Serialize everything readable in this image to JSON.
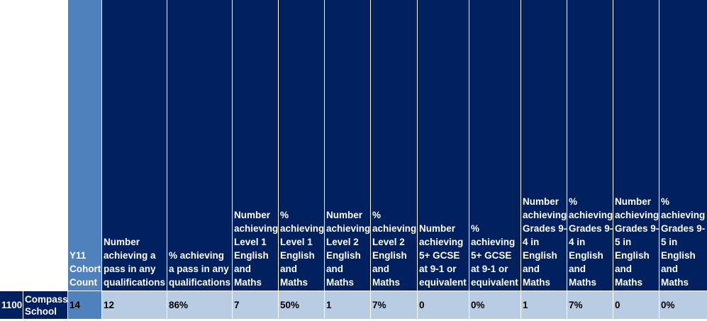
{
  "columns": [
    {
      "header": "Y11 Cohort Count",
      "value": "14"
    },
    {
      "header": "Number achieving a pass in any qualifications",
      "value": "12"
    },
    {
      "header": "% achieving a pass in any qualifications",
      "value": "86%"
    },
    {
      "header": "Number achieving Level 1 English and Maths",
      "value": "7"
    },
    {
      "header": "% achieving Level 1 English and Maths",
      "value": "50%"
    },
    {
      "header": "Number achieving Level 2 English and Maths",
      "value": "1"
    },
    {
      "header": "% achieving Level 2 English and Maths",
      "value": "7%"
    },
    {
      "header": "Number achieving 5+ GCSE at 9-1 or equivalent",
      "value": "0"
    },
    {
      "header": "% achieving 5+ GCSE at 9-1 or equivalent",
      "value": "0%"
    },
    {
      "header": "Number achieving Grades 9-4 in English and Maths",
      "value": "1"
    },
    {
      "header": "% achieving Grades 9-4 in English and Maths",
      "value": "7%"
    },
    {
      "header": "Number achieving Grades 9-5 in English and Maths",
      "value": "0"
    },
    {
      "header": "% achieving Grades 9-5 in English and Maths",
      "value": "0%"
    }
  ],
  "row": {
    "code": "1100",
    "school": "Compass School"
  },
  "colors": {
    "header_navy": "#002060",
    "cohort_blue": "#4f81bd",
    "data_light": "#b8cce4"
  }
}
